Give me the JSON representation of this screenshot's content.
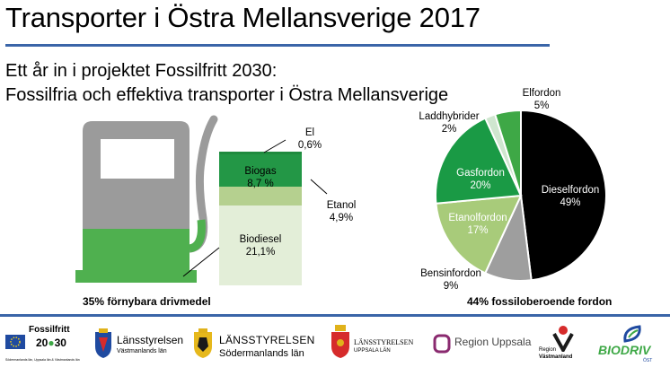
{
  "title": "Transporter i Östra Mellansverige 2017",
  "subtitle_line1": "Ett år in i projektet Fossilfritt 2030:",
  "subtitle_line2": "Fossilfria och effektiva transporter i Östra Mellansverige",
  "fuel_chart": {
    "caption": "35% förnybara drivmedel",
    "segments": [
      {
        "label": "Biodiesel",
        "value_label": "21,1%",
        "value": 21.1,
        "color": "#e3eed8"
      },
      {
        "label": "Etanol",
        "value_label": "4,9%",
        "value": 4.9,
        "color": "#b5d08f"
      },
      {
        "label": "Biogas",
        "value_label": "8,7 %",
        "value": 8.7,
        "color": "#239746"
      },
      {
        "label": "El",
        "value_label": "0,6%",
        "value": 0.6,
        "color": "#1f8a3e"
      }
    ]
  },
  "chart_data": {
    "type": "pie",
    "caption": "44% fossiloberoende fordon",
    "slices": [
      {
        "label": "Dieselfordon",
        "value_label": "49%",
        "value": 49,
        "color": "#000000"
      },
      {
        "label": "Bensinfordon",
        "value_label": "9%",
        "value": 9,
        "color": "#9e9e9e"
      },
      {
        "label": "Etanolfordon",
        "value_label": "17%",
        "value": 17,
        "color": "#a8cb7a"
      },
      {
        "label": "Gasfordon",
        "value_label": "20%",
        "value": 20,
        "color": "#1a9a45"
      },
      {
        "label": "Laddhybrider",
        "value_label": "2%",
        "value": 2,
        "color": "#cfe6cf"
      },
      {
        "label": "Elfordon",
        "value_label": "5%",
        "value": 5,
        "color": "#3ea846"
      }
    ]
  },
  "logos": {
    "fossilfritt": {
      "line1": "Fossilfritt",
      "line2": "20",
      "line3": "30",
      "small": "Södermanlands län, Uppsala län & Västmanlands län"
    },
    "lst_vastmanland": {
      "name": "Länsstyrelsen",
      "sub": "Västmanlands län"
    },
    "lst_sodermanland": {
      "name": "LÄNSSTYRELSEN",
      "sub": "Södermanlands län"
    },
    "lst_uppsala": {
      "name": "LÄNSSTYRELSEN",
      "sub": "UPPSALA LÄN"
    },
    "region_uppsala": {
      "name": "Region Uppsala"
    },
    "region_vastmanland": {
      "line1": "Region",
      "line2": "Västmanland"
    },
    "biodriv": {
      "name": "BIODRIV",
      "sub": "ÖST"
    }
  }
}
